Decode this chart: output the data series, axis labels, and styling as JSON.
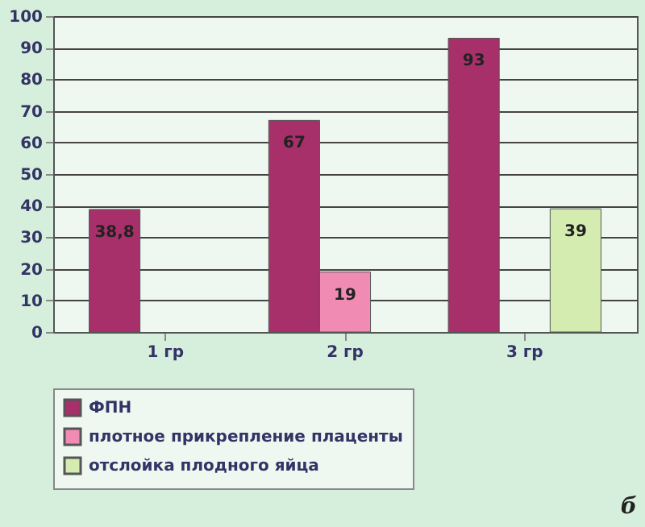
{
  "chart_data": {
    "type": "bar",
    "categories": [
      "1 гр",
      "2 гр",
      "3 гр"
    ],
    "series": [
      {
        "name": "ФПН",
        "color": "#a8306a",
        "values": [
          38.8,
          67,
          93
        ],
        "value_labels": [
          "38,8",
          "67",
          "93"
        ]
      },
      {
        "name": "плотное прикрепление плаценты",
        "color": "#f08cb4",
        "values": [
          null,
          19,
          null
        ],
        "value_labels": [
          null,
          "19",
          null
        ]
      },
      {
        "name": "отслойка плодного яйца",
        "color": "#d4ecb0",
        "values": [
          null,
          null,
          39
        ],
        "value_labels": [
          null,
          null,
          "39"
        ]
      }
    ],
    "ylim": [
      0,
      100
    ],
    "yticks": [
      0,
      10,
      20,
      30,
      40,
      50,
      60,
      70,
      80,
      90,
      100
    ],
    "grid": "y",
    "legend": "bottom",
    "annotations": [
      "б"
    ]
  }
}
